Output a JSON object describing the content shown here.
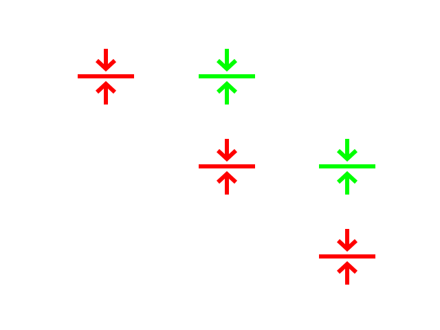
{
  "colors": {
    "red": "#ff0000",
    "green": "#00ff00",
    "background": "#ffffff"
  },
  "icons": [
    {
      "name": "collapse-vertical-icon",
      "color": "red"
    },
    {
      "name": "collapse-vertical-icon",
      "color": "green"
    },
    {
      "name": "collapse-vertical-icon",
      "color": "red"
    },
    {
      "name": "collapse-vertical-icon",
      "color": "green"
    },
    {
      "name": "collapse-vertical-icon",
      "color": "red"
    }
  ]
}
